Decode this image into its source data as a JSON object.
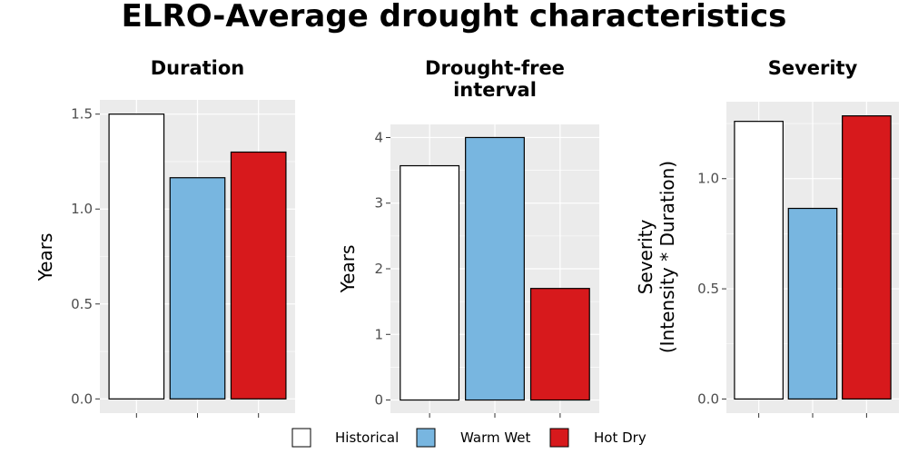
{
  "title": "ELRO-Average drought characteristics",
  "chart_data": [
    {
      "type": "bar",
      "title": "Duration",
      "ylabel": "Years",
      "categories": [
        "Historical",
        "Warm Wet",
        "Hot Dry"
      ],
      "values": [
        1.5,
        1.165,
        1.3
      ],
      "ylim": [
        0,
        1.5
      ],
      "yticks": [
        0.0,
        0.5,
        1.0,
        1.5
      ],
      "ytick_labels": [
        "0.0",
        "0.5",
        "1.0",
        "1.5"
      ],
      "grid": true
    },
    {
      "type": "bar",
      "title": "Drought-free\ninterval",
      "ylabel": "Years",
      "categories": [
        "Historical",
        "Warm Wet",
        "Hot Dry"
      ],
      "values": [
        3.57,
        4.0,
        1.7
      ],
      "ylim": [
        0,
        4.0
      ],
      "yticks": [
        0,
        1,
        2,
        3,
        4
      ],
      "ytick_labels": [
        "0",
        "1",
        "2",
        "3",
        "4"
      ],
      "grid": true
    },
    {
      "type": "bar",
      "title": "Severity",
      "ylabel": "Severity\n(Intensity * Duration)",
      "categories": [
        "Historical",
        "Warm Wet",
        "Hot Dry"
      ],
      "values": [
        1.26,
        0.865,
        1.285
      ],
      "ylim": [
        0,
        1.285
      ],
      "yticks": [
        0.0,
        0.5,
        1.0
      ],
      "ytick_labels": [
        "0.0",
        "0.5",
        "1.0"
      ],
      "grid": true
    }
  ],
  "legend": {
    "position": "bottom",
    "items": [
      {
        "label": "Historical",
        "color": "#ffffff"
      },
      {
        "label": "Warm Wet",
        "color": "#78b6e0"
      },
      {
        "label": "Hot Dry",
        "color": "#d7191c"
      }
    ]
  },
  "colors": {
    "panel_background": "#ebebeb",
    "grid": "#ffffff",
    "bar_outline": "#000000"
  }
}
